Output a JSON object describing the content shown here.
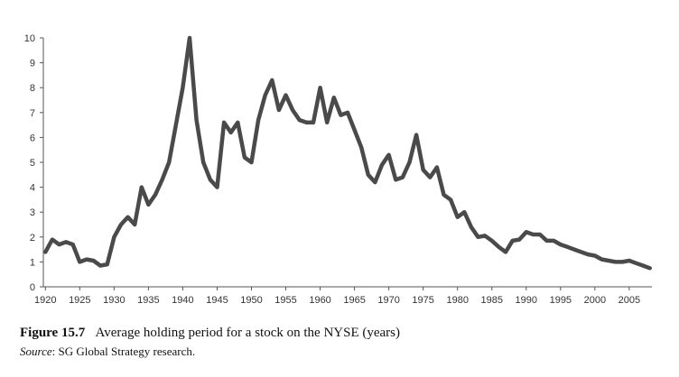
{
  "caption": {
    "figure_label": "Figure 15.7",
    "text": "Average holding period for a stock on the NYSE (years)"
  },
  "source": {
    "label": "Source",
    "text": ": SG Global Strategy research."
  },
  "chart_data": {
    "type": "line",
    "title": "",
    "xlabel": "",
    "ylabel": "",
    "xlim": [
      1919.7,
      2008.3
    ],
    "ylim": [
      0,
      10
    ],
    "xticks": [
      1920,
      1925,
      1930,
      1935,
      1940,
      1945,
      1950,
      1955,
      1960,
      1965,
      1970,
      1975,
      1980,
      1985,
      1990,
      1995,
      2000,
      2005
    ],
    "yticks": [
      0,
      1,
      2,
      3,
      4,
      5,
      6,
      7,
      8,
      9,
      10
    ],
    "grid": false,
    "legend": false,
    "line_color": "#4a4a4a",
    "series": [
      {
        "x": [
          1920,
          1921,
          1922,
          1923,
          1924,
          1925,
          1926,
          1927,
          1928,
          1929,
          1930,
          1931,
          1932,
          1933,
          1934,
          1935,
          1936,
          1937,
          1938,
          1939,
          1940,
          1941,
          1942,
          1943,
          1944,
          1945,
          1946,
          1947,
          1948,
          1949,
          1950,
          1951,
          1952,
          1953,
          1954,
          1955,
          1956,
          1957,
          1958,
          1959,
          1960,
          1961,
          1962,
          1963,
          1964,
          1965,
          1966,
          1967,
          1968,
          1969,
          1970,
          1971,
          1972,
          1973,
          1974,
          1975,
          1976,
          1977,
          1978,
          1979,
          1980,
          1981,
          1982,
          1983,
          1984,
          1985,
          1986,
          1987,
          1988,
          1989,
          1990,
          1991,
          1992,
          1993,
          1994,
          1995,
          1996,
          1997,
          1998,
          1999,
          2000,
          2001,
          2002,
          2003,
          2004,
          2005,
          2006,
          2007,
          2008
        ],
        "values": [
          1.4,
          1.9,
          1.7,
          1.8,
          1.7,
          1.0,
          1.1,
          1.05,
          0.85,
          0.9,
          2.0,
          2.5,
          2.8,
          2.5,
          4.0,
          3.3,
          3.7,
          4.3,
          5.0,
          6.5,
          8.0,
          10.0,
          6.7,
          5.0,
          4.3,
          4.0,
          6.6,
          6.2,
          6.6,
          5.2,
          5.0,
          6.7,
          7.7,
          8.3,
          7.1,
          7.7,
          7.1,
          6.7,
          6.6,
          6.6,
          8.0,
          6.6,
          7.6,
          6.9,
          7.0,
          6.3,
          5.6,
          4.5,
          4.2,
          4.9,
          5.3,
          4.3,
          4.4,
          5.0,
          6.1,
          4.7,
          4.4,
          4.8,
          3.7,
          3.5,
          2.8,
          3.0,
          2.4,
          2.0,
          2.05,
          1.85,
          1.6,
          1.4,
          1.85,
          1.9,
          2.2,
          2.1,
          2.1,
          1.85,
          1.85,
          1.7,
          1.6,
          1.5,
          1.4,
          1.3,
          1.25,
          1.1,
          1.05,
          1.0,
          1.0,
          1.05,
          0.95,
          0.85,
          0.75
        ]
      }
    ]
  }
}
